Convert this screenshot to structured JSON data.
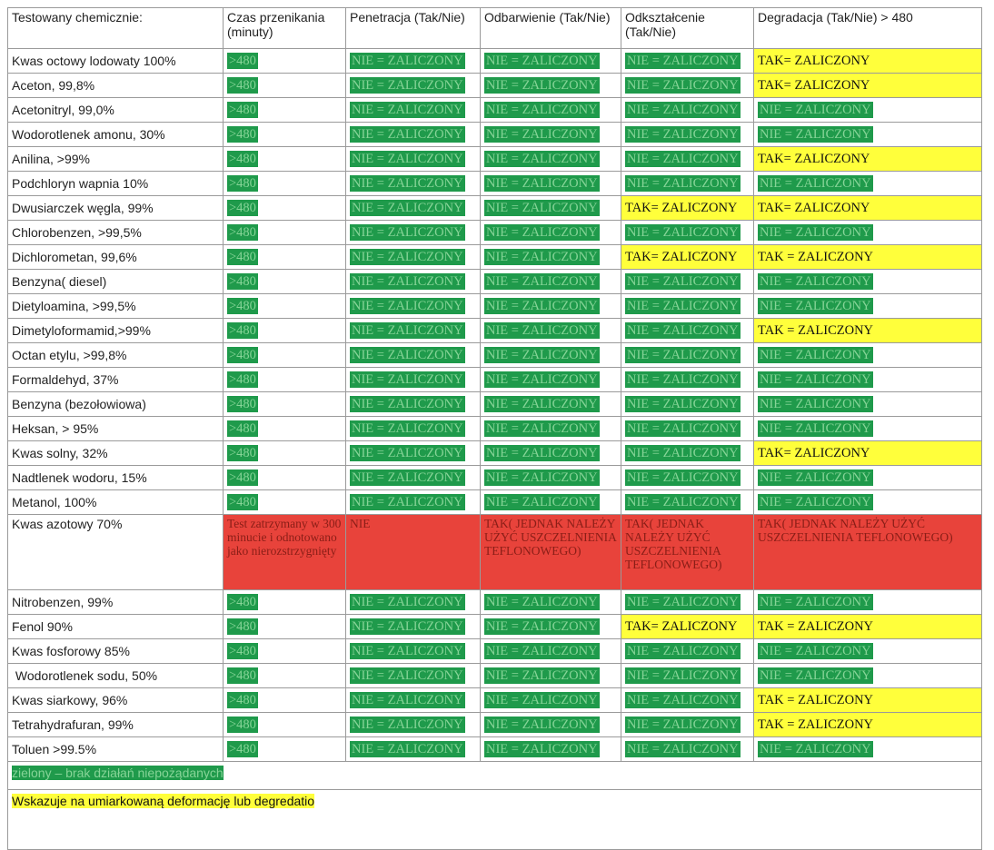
{
  "header": [
    "Testowany chemicznie:",
    "Czas przenikania (minuty)",
    "Penetracja (Tak/Nie)",
    "Odbarwienie (Tak/Nie)",
    "Odkształcenie (Tak/Nie)",
    "Degradacja (Tak/Nie) > 480"
  ],
  "rows": [
    {
      "name": "Kwas octowy lodowaty 100%",
      "cells": [
        {
          "text": ">480",
          "color": "green"
        },
        {
          "text": "NIE = ZALICZONY",
          "color": "green"
        },
        {
          "text": "NIE = ZALICZONY",
          "color": "green"
        },
        {
          "text": "NIE = ZALICZONY",
          "color": "green"
        },
        {
          "text": "TAK= ZALICZONY",
          "color": "yellow"
        }
      ]
    },
    {
      "name": "Aceton, 99,8%",
      "cells": [
        {
          "text": ">480",
          "color": "green"
        },
        {
          "text": "NIE = ZALICZONY",
          "color": "green"
        },
        {
          "text": "NIE = ZALICZONY",
          "color": "green"
        },
        {
          "text": "NIE = ZALICZONY",
          "color": "green"
        },
        {
          "text": "TAK= ZALICZONY",
          "color": "yellow"
        }
      ]
    },
    {
      "name": "Acetonitryl, 99,0%",
      "cells": [
        {
          "text": ">480",
          "color": "green"
        },
        {
          "text": "NIE = ZALICZONY",
          "color": "green"
        },
        {
          "text": "NIE = ZALICZONY",
          "color": "green"
        },
        {
          "text": "NIE = ZALICZONY",
          "color": "green"
        },
        {
          "text": "NIE = ZALICZONY",
          "color": "green"
        }
      ]
    },
    {
      "name": "Wodorotlenek amonu, 30%",
      "cells": [
        {
          "text": ">480",
          "color": "green"
        },
        {
          "text": "NIE = ZALICZONY",
          "color": "green"
        },
        {
          "text": "NIE = ZALICZONY",
          "color": "green"
        },
        {
          "text": "NIE = ZALICZONY",
          "color": "green"
        },
        {
          "text": "NIE = ZALICZONY",
          "color": "green"
        }
      ]
    },
    {
      "name": "Anilina, >99%",
      "cells": [
        {
          "text": ">480",
          "color": "green"
        },
        {
          "text": "NIE = ZALICZONY",
          "color": "green"
        },
        {
          "text": "NIE = ZALICZONY",
          "color": "green"
        },
        {
          "text": "NIE = ZALICZONY",
          "color": "green"
        },
        {
          "text": "TAK= ZALICZONY",
          "color": "yellow"
        }
      ]
    },
    {
      "name": "Podchloryn wapnia 10%",
      "cells": [
        {
          "text": ">480",
          "color": "green"
        },
        {
          "text": "NIE = ZALICZONY",
          "color": "green"
        },
        {
          "text": "NIE = ZALICZONY",
          "color": "green"
        },
        {
          "text": "NIE = ZALICZONY",
          "color": "green"
        },
        {
          "text": "NIE = ZALICZONY",
          "color": "green"
        }
      ]
    },
    {
      "name": "Dwusiarczek węgla, 99%",
      "cells": [
        {
          "text": ">480",
          "color": "green"
        },
        {
          "text": "NIE = ZALICZONY",
          "color": "green"
        },
        {
          "text": "NIE = ZALICZONY",
          "color": "green"
        },
        {
          "text": "TAK= ZALICZONY",
          "color": "yellow"
        },
        {
          "text": "TAK= ZALICZONY",
          "color": "yellow"
        }
      ]
    },
    {
      "name": "Chlorobenzen, >99,5%",
      "cells": [
        {
          "text": ">480",
          "color": "green"
        },
        {
          "text": "NIE = ZALICZONY",
          "color": "green"
        },
        {
          "text": "NIE = ZALICZONY",
          "color": "green"
        },
        {
          "text": "NIE = ZALICZONY",
          "color": "green"
        },
        {
          "text": "NIE = ZALICZONY",
          "color": "green"
        }
      ]
    },
    {
      "name": "Dichlorometan, 99,6%",
      "cells": [
        {
          "text": ">480",
          "color": "green"
        },
        {
          "text": "NIE = ZALICZONY",
          "color": "green"
        },
        {
          "text": "NIE = ZALICZONY",
          "color": "green"
        },
        {
          "text": "TAK= ZALICZONY",
          "color": "yellow"
        },
        {
          "text": "TAK = ZALICZONY",
          "color": "yellow"
        }
      ]
    },
    {
      "name": "Benzyna( diesel)",
      "cells": [
        {
          "text": ">480",
          "color": "green"
        },
        {
          "text": "NIE = ZALICZONY",
          "color": "green"
        },
        {
          "text": "NIE = ZALICZONY",
          "color": "green"
        },
        {
          "text": "NIE = ZALICZONY",
          "color": "green"
        },
        {
          "text": "NIE = ZALICZONY",
          "color": "green"
        }
      ]
    },
    {
      "name": "Dietyloamina, >99,5%",
      "cells": [
        {
          "text": ">480",
          "color": "green"
        },
        {
          "text": "NIE = ZALICZONY",
          "color": "green"
        },
        {
          "text": "NIE = ZALICZONY",
          "color": "green"
        },
        {
          "text": "NIE = ZALICZONY",
          "color": "green"
        },
        {
          "text": "NIE = ZALICZONY",
          "color": "green"
        }
      ]
    },
    {
      "name": "Dimetyloformamid,>99%",
      "cells": [
        {
          "text": ">480",
          "color": "green"
        },
        {
          "text": "NIE = ZALICZONY",
          "color": "green"
        },
        {
          "text": "NIE = ZALICZONY",
          "color": "green"
        },
        {
          "text": "NIE = ZALICZONY",
          "color": "green"
        },
        {
          "text": "TAK = ZALICZONY",
          "color": "yellow"
        }
      ]
    },
    {
      "name": "Octan etylu, >99,8%",
      "cells": [
        {
          "text": ">480",
          "color": "green"
        },
        {
          "text": "NIE = ZALICZONY",
          "color": "green"
        },
        {
          "text": "NIE = ZALICZONY",
          "color": "green"
        },
        {
          "text": "NIE = ZALICZONY",
          "color": "green"
        },
        {
          "text": "NIE = ZALICZONY",
          "color": "green"
        }
      ]
    },
    {
      "name": "Formaldehyd, 37%",
      "cells": [
        {
          "text": ">480",
          "color": "green"
        },
        {
          "text": "NIE = ZALICZONY",
          "color": "green"
        },
        {
          "text": "NIE = ZALICZONY",
          "color": "green"
        },
        {
          "text": "NIE = ZALICZONY",
          "color": "green"
        },
        {
          "text": "NIE = ZALICZONY",
          "color": "green"
        }
      ]
    },
    {
      "name": "Benzyna (bezołowiowa)",
      "cells": [
        {
          "text": ">480",
          "color": "green"
        },
        {
          "text": "NIE = ZALICZONY",
          "color": "green"
        },
        {
          "text": "NIE = ZALICZONY",
          "color": "green"
        },
        {
          "text": "NIE = ZALICZONY",
          "color": "green"
        },
        {
          "text": "NIE = ZALICZONY",
          "color": "green"
        }
      ]
    },
    {
      "name": "Heksan, > 95%",
      "cells": [
        {
          "text": ">480",
          "color": "green"
        },
        {
          "text": "NIE = ZALICZONY",
          "color": "green"
        },
        {
          "text": "NIE = ZALICZONY",
          "color": "green"
        },
        {
          "text": "NIE = ZALICZONY",
          "color": "green"
        },
        {
          "text": "NIE = ZALICZONY",
          "color": "green"
        }
      ]
    },
    {
      "name": "Kwas solny, 32%",
      "cells": [
        {
          "text": ">480",
          "color": "green"
        },
        {
          "text": "NIE = ZALICZONY",
          "color": "green"
        },
        {
          "text": "NIE = ZALICZONY",
          "color": "green"
        },
        {
          "text": "NIE = ZALICZONY",
          "color": "green"
        },
        {
          "text": "TAK= ZALICZONY",
          "color": "yellow"
        }
      ]
    },
    {
      "name": "Nadtlenek wodoru, 15%",
      "cells": [
        {
          "text": ">480",
          "color": "green"
        },
        {
          "text": "NIE = ZALICZONY",
          "color": "green"
        },
        {
          "text": "NIE = ZALICZONY",
          "color": "green"
        },
        {
          "text": "NIE = ZALICZONY",
          "color": "green"
        },
        {
          "text": "NIE = ZALICZONY",
          "color": "green"
        }
      ]
    },
    {
      "name": "Metanol, 100%",
      "cells": [
        {
          "text": ">480",
          "color": "green"
        },
        {
          "text": "NIE = ZALICZONY",
          "color": "green"
        },
        {
          "text": "NIE = ZALICZONY",
          "color": "green"
        },
        {
          "text": "NIE = ZALICZONY",
          "color": "green"
        },
        {
          "text": "NIE = ZALICZONY",
          "color": "green"
        }
      ]
    },
    {
      "name": "Kwas azotowy 70%",
      "cells": [
        {
          "text": "Test zatrzymany w 300 minucie i odnotowano jako nierozstrzygnięty",
          "color": "red"
        },
        {
          "text": "NIE",
          "color": "red"
        },
        {
          "text": "TAK( JEDNAK NALEŻY UŻYĆ USZCZELNIENIA TEFLONOWEGO)",
          "color": "red"
        },
        {
          "text": "TAK( JEDNAK NALEŻY UŻYĆ USZCZELNIENIA TEFLONOWEGO)",
          "color": "red"
        },
        {
          "text": "TAK( JEDNAK NALEŻY UŻYĆ USZCZELNIENIA TEFLONOWEGO)",
          "color": "red"
        }
      ]
    },
    {
      "name": "Nitrobenzen, 99%",
      "cells": [
        {
          "text": ">480",
          "color": "green"
        },
        {
          "text": "NIE = ZALICZONY",
          "color": "green"
        },
        {
          "text": "NIE = ZALICZONY",
          "color": "green"
        },
        {
          "text": "NIE = ZALICZONY",
          "color": "green"
        },
        {
          "text": "NIE = ZALICZONY",
          "color": "green"
        }
      ]
    },
    {
      "name": "Fenol 90%",
      "cells": [
        {
          "text": ">480",
          "color": "green"
        },
        {
          "text": "NIE = ZALICZONY",
          "color": "green"
        },
        {
          "text": "NIE = ZALICZONY",
          "color": "green"
        },
        {
          "text": "TAK= ZALICZONY",
          "color": "yellow"
        },
        {
          "text": "TAK = ZALICZONY",
          "color": "yellow"
        }
      ]
    },
    {
      "name": "Kwas fosforowy 85%",
      "cells": [
        {
          "text": ">480",
          "color": "green"
        },
        {
          "text": "NIE = ZALICZONY",
          "color": "green"
        },
        {
          "text": "NIE = ZALICZONY",
          "color": "green"
        },
        {
          "text": "NIE = ZALICZONY",
          "color": "green"
        },
        {
          "text": "NIE = ZALICZONY",
          "color": "green"
        }
      ]
    },
    {
      "name": " Wodorotlenek sodu, 50%",
      "cells": [
        {
          "text": ">480",
          "color": "green"
        },
        {
          "text": "NIE = ZALICZONY",
          "color": "green"
        },
        {
          "text": "NIE = ZALICZONY",
          "color": "green"
        },
        {
          "text": "NIE = ZALICZONY",
          "color": "green"
        },
        {
          "text": "NIE = ZALICZONY",
          "color": "green"
        }
      ]
    },
    {
      "name": "Kwas siarkowy, 96%",
      "cells": [
        {
          "text": ">480",
          "color": "green"
        },
        {
          "text": "NIE = ZALICZONY",
          "color": "green"
        },
        {
          "text": "NIE = ZALICZONY",
          "color": "green"
        },
        {
          "text": "NIE = ZALICZONY",
          "color": "green"
        },
        {
          "text": "TAK = ZALICZONY",
          "color": "yellow"
        }
      ]
    },
    {
      "name": "Tetrahydrafuran, 99%",
      "cells": [
        {
          "text": ">480",
          "color": "green"
        },
        {
          "text": "NIE = ZALICZONY",
          "color": "green"
        },
        {
          "text": "NIE = ZALICZONY",
          "color": "green"
        },
        {
          "text": "NIE = ZALICZONY",
          "color": "green"
        },
        {
          "text": "TAK = ZALICZONY",
          "color": "yellow"
        }
      ]
    },
    {
      "name": "Toluen >99.5%",
      "cells": [
        {
          "text": ">480",
          "color": "green"
        },
        {
          "text": "NIE = ZALICZONY",
          "color": "green"
        },
        {
          "text": "NIE = ZALICZONY",
          "color": "green"
        },
        {
          "text": "NIE = ZALICZONY",
          "color": "green"
        },
        {
          "text": "NIE = ZALICZONY",
          "color": "green"
        }
      ]
    }
  ],
  "legend": [
    {
      "text": "zielony – brak działań niepożądanych",
      "color": "green"
    },
    {
      "text": "Wskazuje na umiarkowaną deformację lub degredatio",
      "color": "yellow"
    }
  ]
}
